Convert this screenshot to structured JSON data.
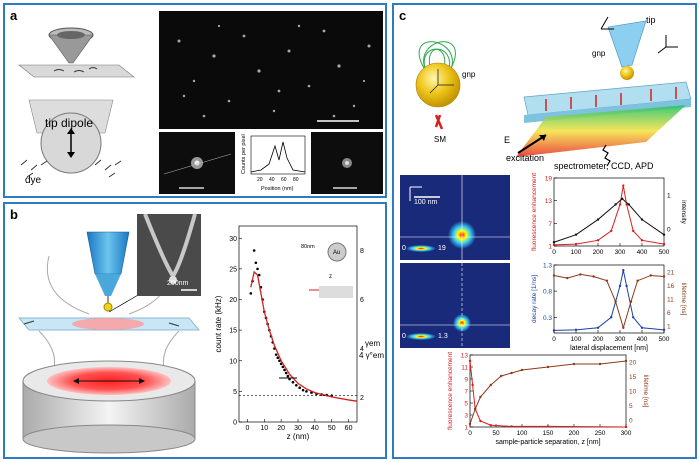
{
  "panels": {
    "a": {
      "label": "a",
      "tip_dipole": "tip dipole",
      "dye": "dye",
      "inset_ylabel": "Counts per pixel",
      "inset_xlabel": "Position (nm)",
      "inset_ticks": [
        "20",
        "40",
        "60",
        "80"
      ]
    },
    "b": {
      "label": "b",
      "scalebar": "200nm",
      "inset_size": "80nm",
      "inset_material": "Au",
      "inset_z": "z",
      "ylabel_left": "count rate (kHz)",
      "ylabel_right_1": "γem",
      "ylabel_right_2": "4 γ°em",
      "xlabel": "z (nm)"
    },
    "c": {
      "label": "c",
      "gnp": "gnp",
      "sm": "SM",
      "tip": "tip",
      "e_field": "E",
      "excitation": "excitation",
      "detector": "spectrometer, CCD, APD",
      "scale_100": "100 nm",
      "colorbar1_min": "0",
      "colorbar1_max": "19",
      "colorbar2_min": "0",
      "colorbar2_max": "1.3",
      "plot1_ylabel_left": "fluorescence enhancement",
      "plot1_ylabel_right": "intensity",
      "plot2_ylabel_left": "decay rate [1/ns]",
      "plot2_ylabel_right": "lifetime [ns]",
      "plot2_xlabel": "lateral displacement [nm]",
      "plot3_ylabel_left": "fluorescence enhancement",
      "plot3_ylabel_right": "lifetime [ns]",
      "plot3_xlabel": "sample-particle separation, z [nm]"
    }
  },
  "chart_data": [
    {
      "type": "scatter",
      "panel": "b",
      "xlabel": "z (nm)",
      "ylabel": "count rate (kHz)",
      "xlim": [
        -5,
        65
      ],
      "ylim": [
        0,
        32
      ],
      "x_ticks": [
        0,
        10,
        20,
        30,
        40,
        50,
        60
      ],
      "y_ticks": [
        0,
        5,
        10,
        15,
        20,
        25,
        30
      ],
      "right_ticks": [
        2,
        4,
        6,
        8
      ],
      "points": [
        [
          2,
          21
        ],
        [
          3,
          23
        ],
        [
          4,
          28
        ],
        [
          5,
          26
        ],
        [
          6,
          25
        ],
        [
          7,
          24
        ],
        [
          8,
          22
        ],
        [
          9,
          20
        ],
        [
          10,
          18
        ],
        [
          11,
          17
        ],
        [
          12,
          16
        ],
        [
          13,
          15
        ],
        [
          14,
          14
        ],
        [
          15,
          13
        ],
        [
          16,
          12
        ],
        [
          17,
          11
        ],
        [
          18,
          10.5
        ],
        [
          19,
          10
        ],
        [
          20,
          9.5
        ],
        [
          21,
          9
        ],
        [
          22,
          8.5
        ],
        [
          23,
          8
        ],
        [
          24,
          7.5
        ],
        [
          25,
          7
        ],
        [
          27,
          6.5
        ],
        [
          29,
          6
        ],
        [
          31,
          5.6
        ],
        [
          33,
          5.2
        ],
        [
          35,
          5
        ],
        [
          38,
          4.8
        ],
        [
          41,
          4.6
        ],
        [
          44,
          4.5
        ],
        [
          47,
          4.4
        ],
        [
          50,
          4.3
        ]
      ],
      "curve": [
        [
          2,
          22
        ],
        [
          4,
          24.5
        ],
        [
          6,
          24
        ],
        [
          8,
          21
        ],
        [
          10,
          18
        ],
        [
          13,
          15
        ],
        [
          16,
          12.5
        ],
        [
          20,
          10
        ],
        [
          25,
          7.8
        ],
        [
          30,
          6.3
        ],
        [
          35,
          5.4
        ],
        [
          40,
          4.8
        ],
        [
          50,
          4.1
        ],
        [
          60,
          3.6
        ],
        [
          65,
          3.4
        ]
      ],
      "baseline": 4.3
    },
    {
      "type": "line",
      "panel": "c-top",
      "xlim": [
        0,
        500
      ],
      "ylim": [
        1,
        19
      ],
      "x_ticks": [
        0,
        100,
        200,
        300,
        400,
        500
      ],
      "y_ticks": [
        1,
        7,
        13,
        19
      ],
      "right_ticks": [
        0,
        1
      ],
      "series": [
        {
          "color": "#d61f1f",
          "points": [
            [
              0,
              1.3
            ],
            [
              100,
              1.5
            ],
            [
              200,
              2.5
            ],
            [
              260,
              5
            ],
            [
              300,
              12
            ],
            [
              315,
              17
            ],
            [
              330,
              12
            ],
            [
              360,
              5
            ],
            [
              400,
              2.5
            ],
            [
              500,
              1.5
            ]
          ]
        },
        {
          "color": "#111111",
          "points": [
            [
              0,
              2
            ],
            [
              100,
              4
            ],
            [
              200,
              8
            ],
            [
              280,
              12
            ],
            [
              310,
              13.5
            ],
            [
              340,
              12
            ],
            [
              400,
              8
            ],
            [
              500,
              4
            ]
          ]
        }
      ]
    },
    {
      "type": "line",
      "panel": "c-mid",
      "xlabel": "lateral displacement [nm]",
      "xlim": [
        0,
        500
      ],
      "ylim": [
        0,
        1.3
      ],
      "x_ticks": [
        0,
        100,
        200,
        300,
        400,
        500
      ],
      "y_ticks": [
        0.3,
        0.8,
        1.3
      ],
      "right_ticks": [
        1,
        6,
        11,
        16,
        21
      ],
      "series": [
        {
          "color": "#1f3fa8",
          "points": [
            [
              0,
              0.05
            ],
            [
              100,
              0.06
            ],
            [
              200,
              0.1
            ],
            [
              260,
              0.3
            ],
            [
              300,
              0.9
            ],
            [
              315,
              1.2
            ],
            [
              330,
              0.9
            ],
            [
              360,
              0.3
            ],
            [
              400,
              0.1
            ],
            [
              500,
              0.06
            ]
          ]
        },
        {
          "color": "#8b3a1a",
          "points": [
            [
              0,
              1.1
            ],
            [
              60,
              1.05
            ],
            [
              120,
              1.12
            ],
            [
              180,
              1.08
            ],
            [
              240,
              1.0
            ],
            [
              280,
              0.6
            ],
            [
              315,
              0.1
            ],
            [
              350,
              0.6
            ],
            [
              380,
              1.0
            ],
            [
              440,
              1.1
            ],
            [
              500,
              1.08
            ]
          ]
        }
      ]
    },
    {
      "type": "line",
      "panel": "c-bottom",
      "xlabel": "sample-particle separation, z [nm]",
      "xlim": [
        0,
        300
      ],
      "ylim": [
        1,
        13
      ],
      "x_ticks": [
        0,
        50,
        100,
        150,
        200,
        250,
        300
      ],
      "y_ticks": [
        1,
        3,
        5,
        7,
        9,
        11,
        13
      ],
      "right_ticks": [
        0,
        5,
        10,
        15,
        20
      ],
      "series": [
        {
          "color": "#d61f1f",
          "points": [
            [
              0,
              12
            ],
            [
              5,
              8
            ],
            [
              10,
              4
            ],
            [
              20,
              2
            ],
            [
              40,
              1.3
            ],
            [
              80,
              1.1
            ],
            [
              150,
              1.1
            ],
            [
              300,
              1.0
            ]
          ]
        },
        {
          "color": "#8b3a1a",
          "points": [
            [
              0,
              1.5
            ],
            [
              10,
              4
            ],
            [
              20,
              6
            ],
            [
              40,
              8
            ],
            [
              60,
              9.5
            ],
            [
              80,
              10
            ],
            [
              100,
              10.5
            ],
            [
              150,
              11
            ],
            [
              200,
              11.5
            ],
            [
              250,
              11.5
            ],
            [
              300,
              12
            ]
          ]
        }
      ]
    }
  ]
}
